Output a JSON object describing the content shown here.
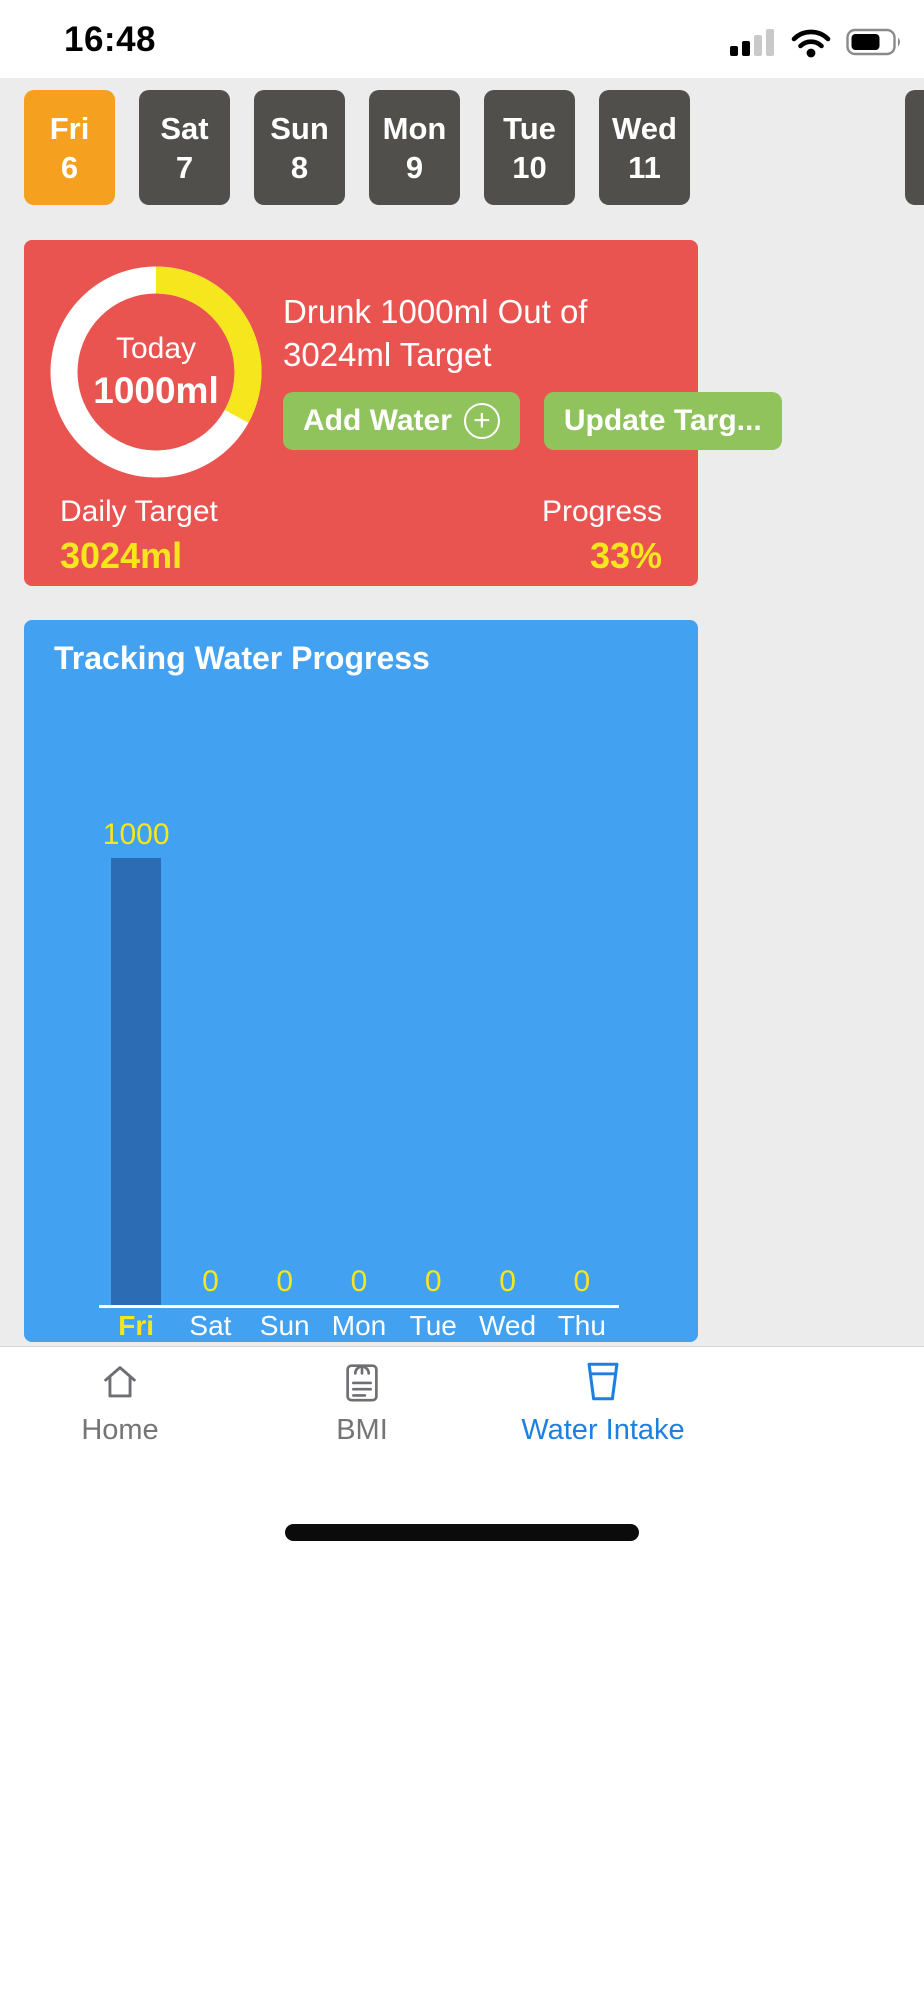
{
  "status_bar": {
    "time": "16:48"
  },
  "day_selector": {
    "days": [
      {
        "label": "Fri",
        "date": "6",
        "selected": true
      },
      {
        "label": "Sat",
        "date": "7",
        "selected": false
      },
      {
        "label": "Sun",
        "date": "8",
        "selected": false
      },
      {
        "label": "Mon",
        "date": "9",
        "selected": false
      },
      {
        "label": "Tue",
        "date": "10",
        "selected": false
      },
      {
        "label": "Wed",
        "date": "11",
        "selected": false
      }
    ]
  },
  "summary_card": {
    "donut": {
      "label": "Today",
      "value": "1000ml",
      "percent": 33
    },
    "headline": "Drunk 1000ml Out of 3024ml Target",
    "buttons": {
      "add_water": "Add Water",
      "update_target": "Update Targ..."
    },
    "daily_target": {
      "label": "Daily Target",
      "value": "3024ml"
    },
    "progress": {
      "label": "Progress",
      "value": "33%"
    }
  },
  "chart_data": {
    "type": "bar",
    "title": "Tracking Water Progress",
    "categories": [
      "Fri",
      "Sat",
      "Sun",
      "Mon",
      "Tue",
      "Wed",
      "Thu"
    ],
    "values": [
      1000,
      0,
      0,
      0,
      0,
      0,
      0
    ],
    "xlabel": "",
    "ylabel": "",
    "ylim": [
      0,
      1100
    ],
    "grid": false,
    "legend": "none",
    "highlighted_category": "Fri",
    "value_labels_shown": true
  },
  "tab_bar": {
    "items": [
      {
        "label": "Home",
        "active": false
      },
      {
        "label": "BMI",
        "active": false
      },
      {
        "label": "Water Intake",
        "active": true
      }
    ]
  },
  "icons": {
    "status": [
      "cellular-signal-icon",
      "wifi-icon",
      "battery-icon"
    ],
    "add_water_button": "plus-circle-icon",
    "tabs": [
      "home-icon",
      "bmi-scale-icon",
      "water-cup-icon"
    ]
  },
  "colors": {
    "selected_day": "#F5A01E",
    "day_chip": "#504F4B",
    "summary_card": "#E95450",
    "accent_yellow": "#F5E61E",
    "button_green": "#90C35C",
    "chart_card": "#42A1F0",
    "bar_fill": "#2C6CB4",
    "active_tab": "#1F7FE0"
  }
}
